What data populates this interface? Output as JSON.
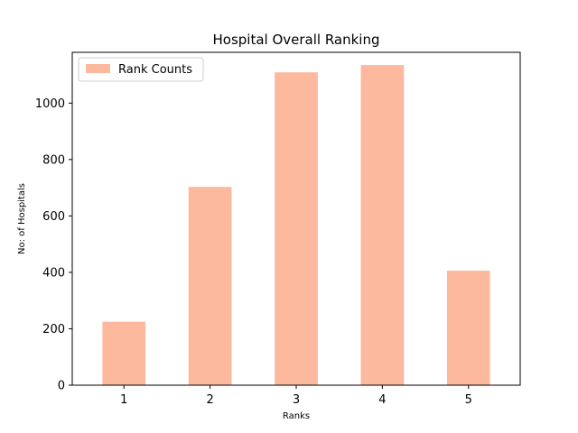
{
  "chart_data": {
    "type": "bar",
    "title": "Hospital Overall Ranking",
    "xlabel": "Ranks",
    "ylabel": "No: of Hospitals",
    "categories": [
      "1",
      "2",
      "3",
      "4",
      "5"
    ],
    "series": [
      {
        "name": "Rank Counts",
        "values": [
          225,
          703,
          1109,
          1135,
          406
        ],
        "color": "#fcb99d"
      }
    ],
    "ylim": [
      0,
      1180
    ],
    "yticks": [
      0,
      200,
      400,
      600,
      800,
      1000
    ],
    "ytick_labels": [
      "0",
      "200",
      "400",
      "600",
      "800",
      "1000"
    ],
    "legend_position": "upper-left",
    "grid": false
  }
}
